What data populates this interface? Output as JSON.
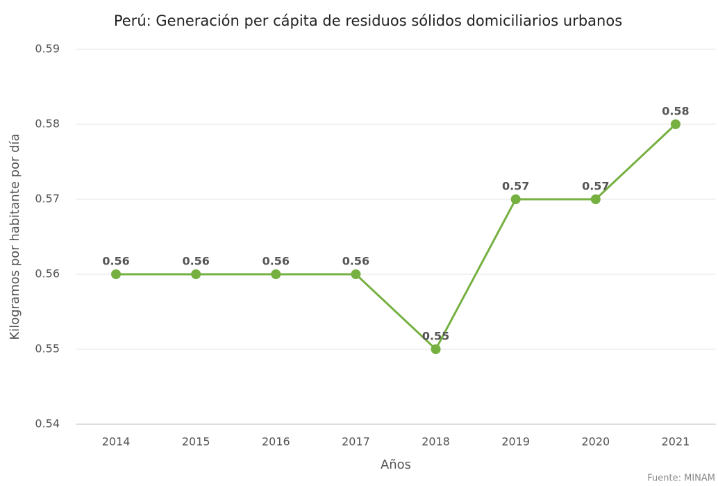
{
  "chart_data": {
    "type": "line",
    "title": "Perú: Generación per cápita de residuos sólidos domiciliarios urbanos",
    "y_label": "Kilogramos por habitante por día",
    "x_label": "Años",
    "source": "Fuente: MINAM",
    "categories": [
      "2014",
      "2015",
      "2016",
      "2017",
      "2018",
      "2019",
      "2020",
      "2021"
    ],
    "series": [
      {
        "name": "Generación per cápita",
        "color": "#76b041",
        "values": [
          0.56,
          0.56,
          0.56,
          0.56,
          0.55,
          0.57,
          0.57,
          0.58
        ]
      }
    ],
    "ylim": [
      0.54,
      0.59
    ],
    "yticks": [
      0.54,
      0.55,
      0.56,
      0.57,
      0.58,
      0.59
    ],
    "grid": true
  }
}
